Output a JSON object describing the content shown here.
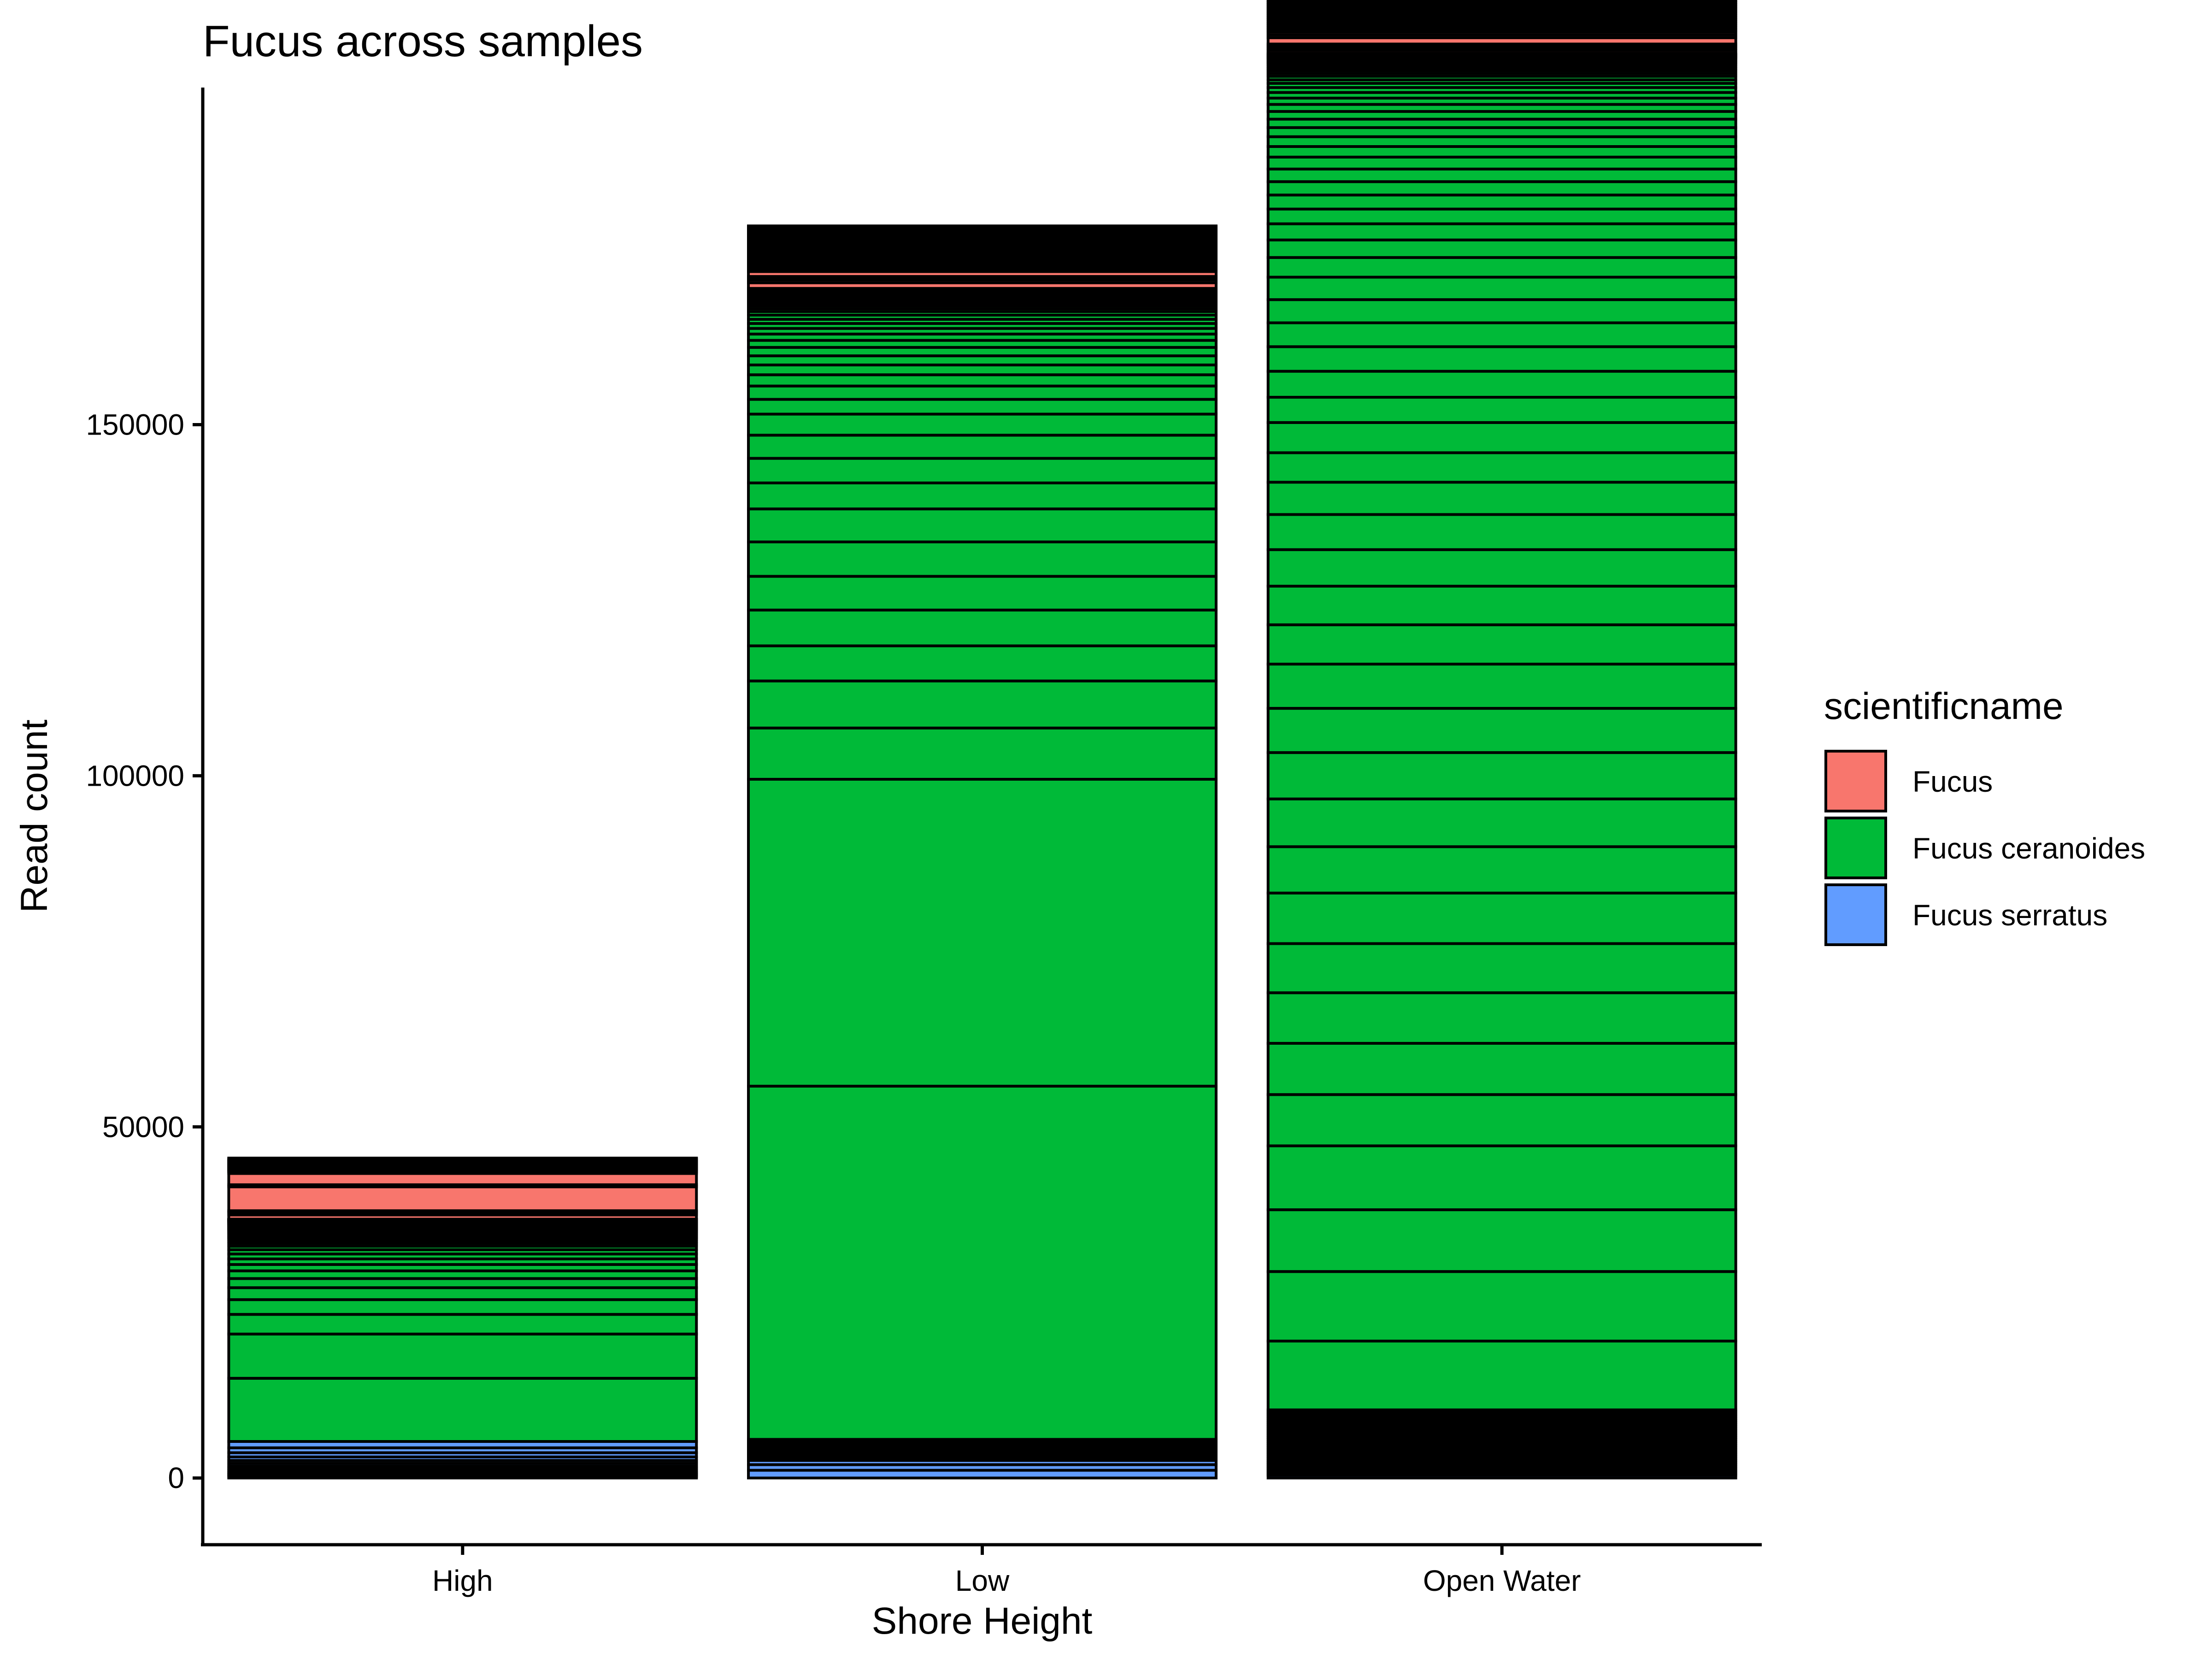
{
  "chart_data": {
    "type": "bar",
    "stacked": true,
    "title": "Fucus across samples",
    "xlabel": "Shore Height",
    "ylabel": "Read count",
    "categories": [
      "High",
      "Low",
      "Open Water"
    ],
    "ylim": [
      -9500,
      198000
    ],
    "yticks": [
      0,
      50000,
      100000,
      150000
    ],
    "ytick_labels": [
      "0",
      "50000",
      "100000",
      "150000"
    ],
    "grid": false,
    "legend": {
      "title": "scientificname",
      "position": "right",
      "entries": [
        {
          "name": "Fucus",
          "color": "#F8766D"
        },
        {
          "name": "Fucus ceranoides",
          "color": "#00BA38"
        },
        {
          "name": "Fucus serratus",
          "color": "#619CFF"
        }
      ]
    },
    "stacks": [
      {
        "category": "High",
        "segments": [
          {
            "species": "Fucus serratus",
            "values": [
              200,
              200,
              200,
              200,
              300,
              300,
              300,
              400,
              400,
              500,
              600,
              700,
              900
            ]
          },
          {
            "species": "Fucus ceranoides",
            "values": [
              9000,
              6300,
              2800,
              2100,
              1700,
              1300,
              1100,
              900,
              800,
              700,
              600,
              500,
              400,
              300,
              300,
              200,
              200,
              200,
              200,
              150,
              150,
              150,
              100,
              100,
              100,
              100,
              100,
              100,
              100,
              80,
              80,
              80,
              60,
              60,
              60,
              50,
              50,
              50,
              40,
              40,
              40,
              30,
              30,
              30,
              30,
              20,
              20,
              20,
              20,
              20
            ]
          },
          {
            "species": "Fucus",
            "values": [
              600,
              300,
              200,
              100,
              3400,
              300,
              1600,
              200,
              100,
              100,
              100,
              100,
              100,
              100,
              100,
              100,
              100,
              100,
              100,
              100,
              100,
              100,
              100,
              100,
              100,
              100,
              100,
              100
            ]
          }
        ]
      },
      {
        "category": "Low",
        "segments": [
          {
            "species": "Fucus serratus",
            "values": [
              1100,
              800,
              600,
              300,
              200,
              200,
              200,
              200,
              200,
              200,
              200,
              200,
              200,
              100,
              100,
              100,
              100,
              100,
              100,
              100,
              100,
              100
            ]
          },
          {
            "species": "Fucus ceranoides",
            "values": [
              50300,
              43700,
              7300,
              6700,
              5000,
              5100,
              4800,
              4900,
              4700,
              3700,
              3500,
              3300,
              3000,
              2100,
              1900,
              1600,
              1400,
              1300,
              1200,
              1000,
              900,
              800,
              700,
              600,
              600,
              500,
              400,
              400,
              300,
              300,
              200,
              200,
              200,
              100,
              100,
              100,
              100,
              100,
              100,
              100,
              100,
              100,
              100,
              100,
              100,
              100
            ]
          },
          {
            "species": "Fucus",
            "values": [
              800,
              400,
              300,
              200,
              700,
              300,
              200,
              200,
              200,
              200,
              200,
              200,
              200,
              200,
              200,
              200,
              200,
              200,
              200,
              200,
              200,
              200,
              200,
              200,
              200,
              200,
              200,
              200,
              200,
              200,
              200,
              200,
              200,
              200,
              200,
              200,
              200
            ]
          }
        ]
      },
      {
        "category": "Open Water",
        "segments": [
          {
            "species": "Fucus serratus",
            "values": [
              400,
              300,
              300,
              300,
              300,
              300,
              300,
              300,
              300,
              300,
              300,
              300,
              300,
              300,
              300,
              300,
              300,
              300,
              300,
              300,
              300,
              300,
              300,
              300,
              300,
              300,
              300,
              300,
              300,
              300,
              300,
              300
            ]
          },
          {
            "species": "Fucus ceranoides",
            "values": [
              9800,
              9900,
              8800,
              9100,
              7300,
              7300,
              7200,
              7000,
              7200,
              6600,
              6800,
              6600,
              6300,
              6300,
              5600,
              5500,
              5200,
              5000,
              4600,
              4200,
              4300,
              3600,
              3700,
              3500,
              3400,
              3300,
              3200,
              2800,
              2500,
              2300,
              2100,
              2000,
              1900,
              1800,
              1700,
              1500,
              1400,
              1300,
              1200,
              1100,
              1000,
              900,
              800,
              700,
              600,
              500,
              500,
              400,
              400,
              300,
              300,
              300,
              200,
              200,
              200,
              200,
              100,
              100,
              100,
              100,
              100,
              100,
              100,
              100
            ]
          },
          {
            "species": "Fucus",
            "values": [
              400,
              300,
              300,
              300,
              900,
              400,
              400,
              300,
              300,
              300,
              300,
              300,
              300,
              300,
              300,
              300,
              300,
              300,
              300,
              300,
              300,
              300,
              300,
              300,
              300,
              300,
              300,
              300,
              300,
              300,
              300,
              300,
              300,
              300,
              300,
              300,
              300,
              300,
              300,
              300,
              300
            ]
          }
        ]
      }
    ]
  }
}
